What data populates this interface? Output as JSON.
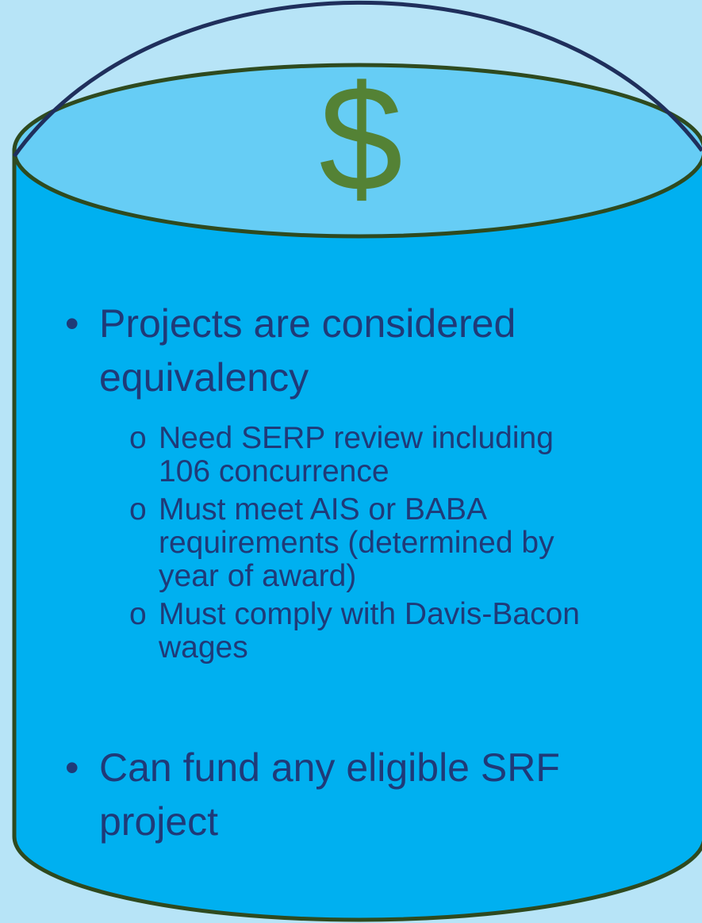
{
  "symbol": "$",
  "bullets": [
    {
      "lines": [
        "Projects are considered",
        "equivalency"
      ],
      "subitems": [
        {
          "lines": [
            "Need SERP review including",
            "106 concurrence"
          ]
        },
        {
          "lines": [
            "Must meet AIS or BABA",
            "requirements (determined by",
            "year of award)"
          ]
        },
        {
          "lines": [
            "Must comply with Davis-Bacon",
            "wages"
          ]
        }
      ]
    },
    {
      "lines": [
        "Can fund any eligible SRF",
        "project"
      ],
      "subitems": []
    }
  ]
}
